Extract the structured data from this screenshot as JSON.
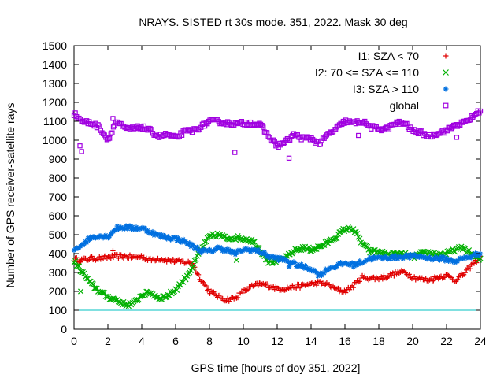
{
  "chart_data": {
    "type": "scatter",
    "title": "NRAYS. SISTED rt 30s mode. 351, 2022. Mask 30 deg",
    "xlabel": "GPS time [hours of doy 351, 2022]",
    "ylabel": "Number of GPS receiver-satellite rays",
    "xlim": [
      0,
      24
    ],
    "ylim": [
      0,
      1500
    ],
    "xticks": [
      0,
      2,
      4,
      6,
      8,
      10,
      12,
      14,
      16,
      18,
      20,
      22,
      24
    ],
    "yticks": [
      0,
      100,
      200,
      300,
      400,
      500,
      600,
      700,
      800,
      900,
      1000,
      1100,
      1200,
      1300,
      1400,
      1500
    ],
    "reference_line": {
      "y": 100,
      "color": "#00c0c0"
    },
    "legend_position": "top-right",
    "series": [
      {
        "name": "I1: SZA < 70",
        "marker": "+",
        "color": "#e00000",
        "x": [
          0,
          0.5,
          1,
          1.5,
          2,
          2.5,
          3,
          3.5,
          4,
          4.5,
          5,
          5.5,
          6,
          6.5,
          7,
          7.3,
          7.6,
          8,
          8.5,
          9,
          9.5,
          10,
          10.5,
          11,
          11.5,
          12,
          12.5,
          13,
          13.5,
          14,
          14.5,
          15,
          15.5,
          16,
          16.5,
          17,
          17.5,
          18,
          18.5,
          19,
          19.5,
          20,
          20.5,
          21,
          21.5,
          22,
          22.5,
          23,
          23.5,
          24
        ],
        "y": [
          370,
          365,
          375,
          375,
          380,
          385,
          385,
          380,
          385,
          365,
          375,
          365,
          360,
          355,
          350,
          290,
          250,
          200,
          175,
          155,
          165,
          200,
          225,
          240,
          230,
          215,
          215,
          225,
          230,
          240,
          245,
          235,
          210,
          200,
          230,
          275,
          270,
          270,
          280,
          295,
          305,
          275,
          265,
          260,
          275,
          285,
          260,
          290,
          340,
          380
        ],
        "outliers": [
          [
            0.4,
            355
          ],
          [
            2.3,
            415
          ]
        ]
      },
      {
        "name": "I2: 70 <= SZA <= 110",
        "marker": "x",
        "color": "#00b000",
        "x": [
          0,
          0.5,
          1,
          1.5,
          2,
          2.5,
          3,
          3.5,
          4,
          4.5,
          5,
          5.5,
          6,
          6.5,
          7,
          7.5,
          8,
          8.5,
          9,
          9.5,
          10,
          10.5,
          11,
          11.5,
          12,
          12.5,
          13,
          13.5,
          14,
          14.5,
          15,
          15.5,
          16,
          16.5,
          17,
          17.5,
          18,
          18.5,
          19,
          19.5,
          20,
          20.5,
          21,
          21.5,
          22,
          22.5,
          23,
          23.5,
          24
        ],
        "y": [
          360,
          300,
          240,
          200,
          170,
          155,
          130,
          135,
          180,
          195,
          165,
          175,
          210,
          260,
          330,
          420,
          490,
          500,
          480,
          485,
          480,
          470,
          420,
          355,
          360,
          375,
          415,
          430,
          420,
          435,
          460,
          490,
          530,
          530,
          455,
          410,
          410,
          395,
          395,
          395,
          380,
          400,
          405,
          395,
          400,
          420,
          430,
          395,
          365
        ],
        "outliers": [
          [
            0.4,
            200
          ],
          [
            9.6,
            365
          ]
        ]
      },
      {
        "name": "I3: SZA > 110",
        "marker": "*",
        "color": "#0070e0",
        "x": [
          0,
          0.5,
          1,
          1.5,
          2,
          2.5,
          3,
          3.5,
          4,
          4.5,
          5,
          5.5,
          6,
          6.5,
          7,
          7.5,
          8,
          8.5,
          9,
          9.5,
          10,
          10.5,
          11,
          11.5,
          12,
          12.5,
          13,
          13.5,
          14,
          14.5,
          15,
          15.5,
          16,
          16.5,
          17,
          17.5,
          18,
          18.5,
          19,
          19.5,
          20,
          20.5,
          21,
          21.5,
          22,
          22.5,
          23,
          23.5,
          24
        ],
        "y": [
          420,
          450,
          485,
          495,
          490,
          535,
          540,
          535,
          535,
          515,
          495,
          485,
          480,
          465,
          440,
          415,
          410,
          430,
          420,
          400,
          420,
          420,
          410,
          385,
          375,
          365,
          345,
          330,
          320,
          285,
          320,
          335,
          350,
          340,
          355,
          375,
          375,
          380,
          380,
          385,
          385,
          385,
          375,
          375,
          370,
          360,
          375,
          385,
          405
        ],
        "outliers": [
          [
            12.7,
            330
          ]
        ]
      },
      {
        "name": "global",
        "marker": "square",
        "color": "#a000e0",
        "x": [
          0,
          0.5,
          1,
          1.5,
          2,
          2.5,
          3,
          3.5,
          4,
          4.5,
          5,
          5.5,
          6,
          6.5,
          7,
          7.5,
          8,
          8.5,
          9,
          9.5,
          10,
          10.5,
          11,
          11.5,
          12,
          12.5,
          13,
          13.5,
          14,
          14.5,
          15,
          15.5,
          16,
          16.5,
          17,
          17.5,
          18,
          18.5,
          19,
          19.5,
          20,
          20.5,
          21,
          21.5,
          22,
          22.5,
          23,
          23.5,
          24
        ],
        "y": [
          1140,
          1100,
          1090,
          1070,
          1000,
          1100,
          1060,
          1060,
          1070,
          1050,
          1020,
          1030,
          1010,
          1045,
          1050,
          1070,
          1100,
          1100,
          1090,
          1085,
          1090,
          1090,
          1080,
          1020,
          970,
          990,
          1030,
          1010,
          1010,
          980,
          1030,
          1060,
          1100,
          1090,
          1100,
          1070,
          1060,
          1060,
          1090,
          1090,
          1050,
          1040,
          1020,
          1040,
          1050,
          1080,
          1090,
          1120,
          1160
        ],
        "outliers": [
          [
            0.35,
            970
          ],
          [
            0.45,
            940
          ],
          [
            2.3,
            1115
          ],
          [
            9.5,
            935
          ],
          [
            12.7,
            905
          ],
          [
            16.8,
            1025
          ],
          [
            22.6,
            1015
          ]
        ]
      }
    ]
  }
}
